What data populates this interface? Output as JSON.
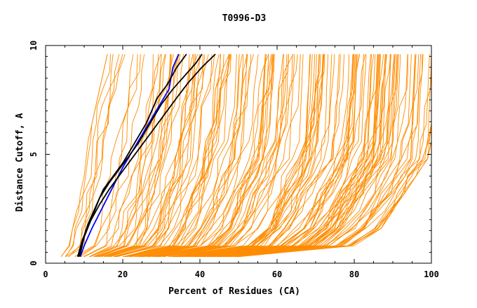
{
  "chart_data": {
    "type": "line",
    "title": "T0996-D3",
    "xlabel": "Percent of Residues (CA)",
    "ylabel": "Distance Cutoff, A",
    "xlim": [
      0,
      100
    ],
    "ylim": [
      0,
      10
    ],
    "x_ticks": [
      0,
      20,
      40,
      60,
      80,
      100
    ],
    "y_ticks": [
      0,
      5,
      10
    ],
    "grid": false,
    "colors": {
      "models": "#ff8c00",
      "highlight_black": "#000000",
      "highlight_blue": "#0000ff"
    },
    "highlighted_series": [
      {
        "color": "#0000ff",
        "x": [
          9,
          10,
          12,
          14,
          16,
          18,
          20,
          22,
          24,
          26,
          28,
          30,
          32,
          33,
          34.5
        ],
        "y": [
          0.3,
          0.8,
          1.6,
          2.3,
          3.0,
          3.7,
          4.4,
          5.0,
          5.6,
          6.2,
          6.8,
          7.4,
          8.0,
          9.0,
          9.6
        ]
      },
      {
        "color": "#000000",
        "x": [
          8.5,
          9.5,
          11,
          13,
          15,
          17.5,
          20,
          22,
          24,
          26,
          27.5,
          29,
          31.5,
          34,
          36.5
        ],
        "y": [
          0.3,
          1.0,
          1.8,
          2.6,
          3.4,
          4.0,
          4.6,
          5.2,
          5.8,
          6.4,
          7.0,
          7.6,
          8.2,
          9.0,
          9.6
        ]
      },
      {
        "color": "#000000",
        "x": [
          8.8,
          10,
          12,
          14,
          16.5,
          19,
          21.5,
          24,
          26,
          28,
          30,
          33,
          36,
          39,
          40.5
        ],
        "y": [
          0.3,
          1.2,
          2.1,
          3.0,
          3.7,
          4.3,
          4.9,
          5.5,
          6.1,
          6.7,
          7.3,
          8.0,
          8.6,
          9.2,
          9.6
        ]
      },
      {
        "color": "#000000",
        "x": [
          8.3,
          9.6,
          11.5,
          14,
          16.5,
          19,
          21.5,
          24,
          26.5,
          29,
          31.5,
          34,
          37,
          40.5,
          44
        ],
        "y": [
          0.3,
          1.1,
          1.9,
          2.7,
          3.4,
          4.0,
          4.6,
          5.2,
          5.8,
          6.4,
          7.0,
          7.6,
          8.3,
          9.0,
          9.6
        ]
      }
    ],
    "model_band": {
      "description_free": true,
      "y_levels": [
        0.3,
        0.8,
        1.6,
        2.4,
        3.2,
        4.0,
        4.8,
        5.6,
        6.4,
        7.2,
        8.0,
        8.8,
        9.6
      ],
      "lower_envelope_x": [
        4,
        6,
        7,
        8,
        9,
        10,
        10.5,
        11,
        12,
        13,
        14,
        15,
        16
      ],
      "upper_envelope_x": [
        50,
        80,
        87,
        90,
        93,
        96,
        99,
        100,
        100,
        100,
        100,
        100,
        100
      ],
      "count": 160
    }
  }
}
